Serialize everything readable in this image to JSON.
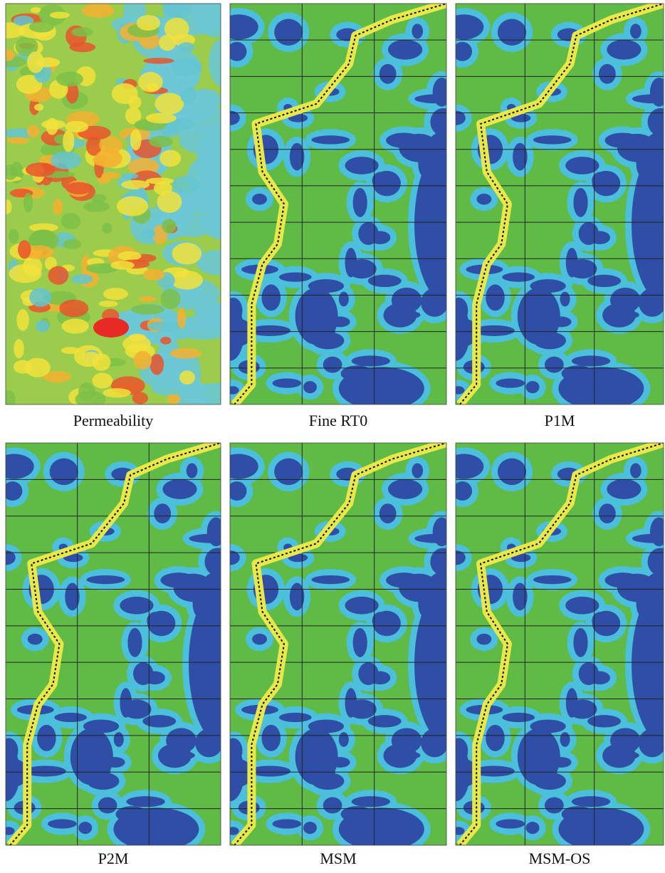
{
  "panels": [
    {
      "caption": "Permeability"
    },
    {
      "caption": "Fine RT0"
    },
    {
      "caption": "P1M"
    },
    {
      "caption": "P2M"
    },
    {
      "caption": "MSM"
    },
    {
      "caption": "MSM-OS"
    }
  ]
}
